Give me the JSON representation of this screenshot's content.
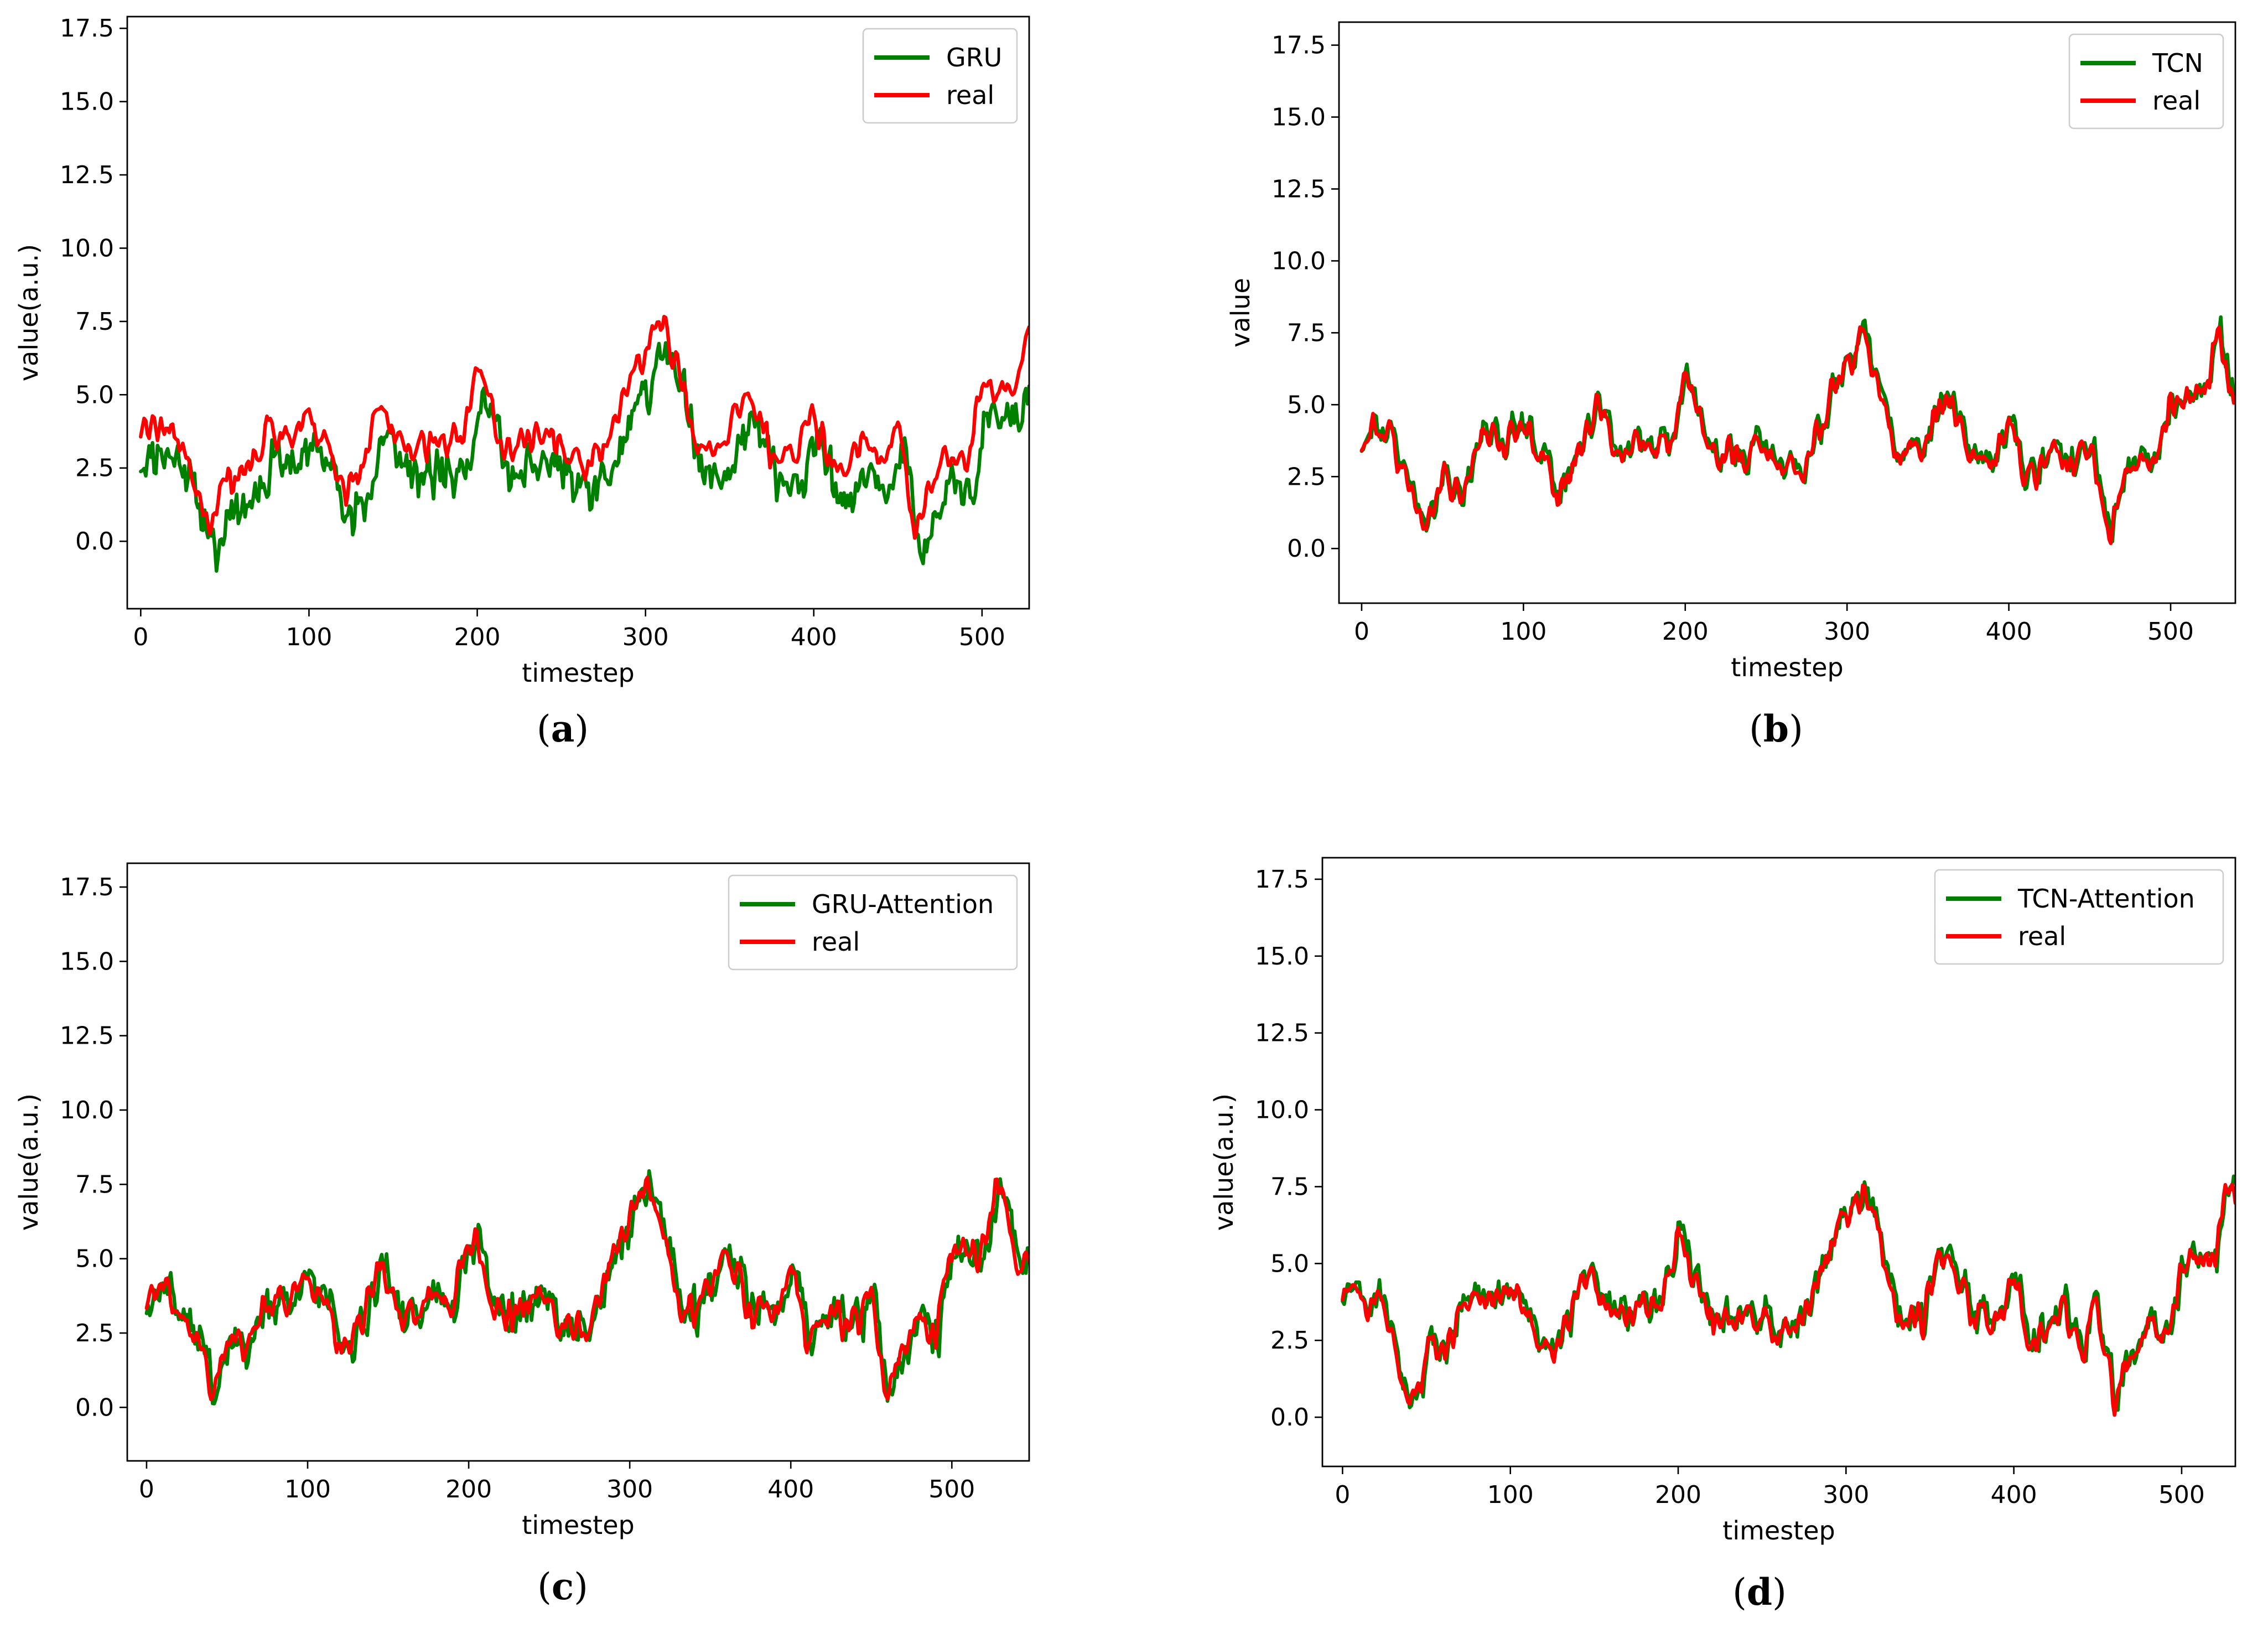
{
  "colors": {
    "predicted": "#008000",
    "real": "#ff0000"
  },
  "chart_data": [
    {
      "type": "line",
      "panel": "(a)",
      "caption_letter": "a",
      "predicted_name": "GRU",
      "real_name": "real",
      "xlabel": "timestep",
      "ylabel": "value(a.u.)",
      "xlim": [
        -8,
        528
      ],
      "ylim": [
        -2.3,
        17.9
      ],
      "xticks": [
        0,
        100,
        200,
        300,
        400,
        500
      ],
      "yticks": [
        0.0,
        2.5,
        5.0,
        7.5,
        10.0,
        12.5,
        15.0,
        17.5
      ],
      "n_points": 529,
      "predicted_lag": 4,
      "predicted_bias": -0.95,
      "predicted_noise": 0.45,
      "seed": 11,
      "legend": "top-right"
    },
    {
      "type": "line",
      "panel": "(b)",
      "caption_letter": "b",
      "predicted_name": "TCN",
      "real_name": "real",
      "xlabel": "timestep",
      "ylabel": "value",
      "xlim": [
        -14,
        540
      ],
      "ylim": [
        -1.9,
        18.3
      ],
      "xticks": [
        0,
        100,
        200,
        300,
        400,
        500
      ],
      "yticks": [
        0.0,
        2.5,
        5.0,
        7.5,
        10.0,
        12.5,
        15.0,
        17.5
      ],
      "n_points": 541,
      "predicted_lag": 1,
      "predicted_bias": 0.1,
      "predicted_noise": 0.25,
      "seed": 23,
      "legend": "top-right"
    },
    {
      "type": "line",
      "panel": "(c)",
      "caption_letter": "c",
      "predicted_name": "GRU-Attention",
      "real_name": "real",
      "xlabel": "timestep",
      "ylabel": "value(a.u.)",
      "xlim": [
        -12,
        548
      ],
      "ylim": [
        -1.8,
        18.3
      ],
      "xticks": [
        0,
        100,
        200,
        300,
        400,
        500
      ],
      "yticks": [
        0.0,
        2.5,
        5.0,
        7.5,
        10.0,
        12.5,
        15.0,
        17.5
      ],
      "n_points": 549,
      "predicted_lag": 2,
      "predicted_bias": 0.0,
      "predicted_noise": 0.35,
      "seed": 37,
      "legend": "top-right"
    },
    {
      "type": "line",
      "panel": "(d)",
      "caption_letter": "d",
      "predicted_name": "TCN-Attention",
      "real_name": "real",
      "xlabel": "timestep",
      "ylabel": "value(a.u.)",
      "xlim": [
        -12,
        532
      ],
      "ylim": [
        -1.6,
        18.2
      ],
      "xticks": [
        0,
        100,
        200,
        300,
        400,
        500
      ],
      "yticks": [
        0.0,
        2.5,
        5.0,
        7.5,
        10.0,
        12.5,
        15.0,
        17.5
      ],
      "n_points": 533,
      "predicted_lag": 1,
      "predicted_bias": 0.1,
      "predicted_noise": 0.3,
      "seed": 53,
      "legend": "top-right"
    }
  ],
  "real_shape": {
    "anchors_t": [
      0,
      10,
      20,
      30,
      40,
      50,
      60,
      75,
      90,
      100,
      110,
      120,
      130,
      145,
      160,
      175,
      190,
      200,
      205,
      215,
      230,
      245,
      260,
      275,
      290,
      300,
      310,
      320,
      330,
      345,
      360,
      375,
      390,
      400,
      410,
      420,
      430,
      440,
      450,
      460,
      470,
      480,
      490,
      500,
      510,
      520,
      528,
      540,
      548
    ],
    "anchors_v": [
      3.8,
      4.1,
      3.6,
      2.4,
      0.5,
      2.3,
      2.0,
      3.9,
      3.6,
      4.2,
      3.6,
      1.9,
      2.6,
      4.9,
      3.1,
      3.6,
      3.5,
      5.9,
      5.6,
      3.4,
      3.3,
      3.6,
      2.7,
      2.9,
      5.4,
      6.5,
      7.4,
      5.8,
      3.3,
      3.4,
      5.4,
      3.2,
      3.0,
      4.8,
      2.4,
      2.8,
      3.4,
      2.6,
      3.9,
      0.2,
      2.2,
      2.8,
      2.7,
      5.1,
      5.3,
      5.2,
      7.6,
      5.0,
      4.9
    ]
  }
}
